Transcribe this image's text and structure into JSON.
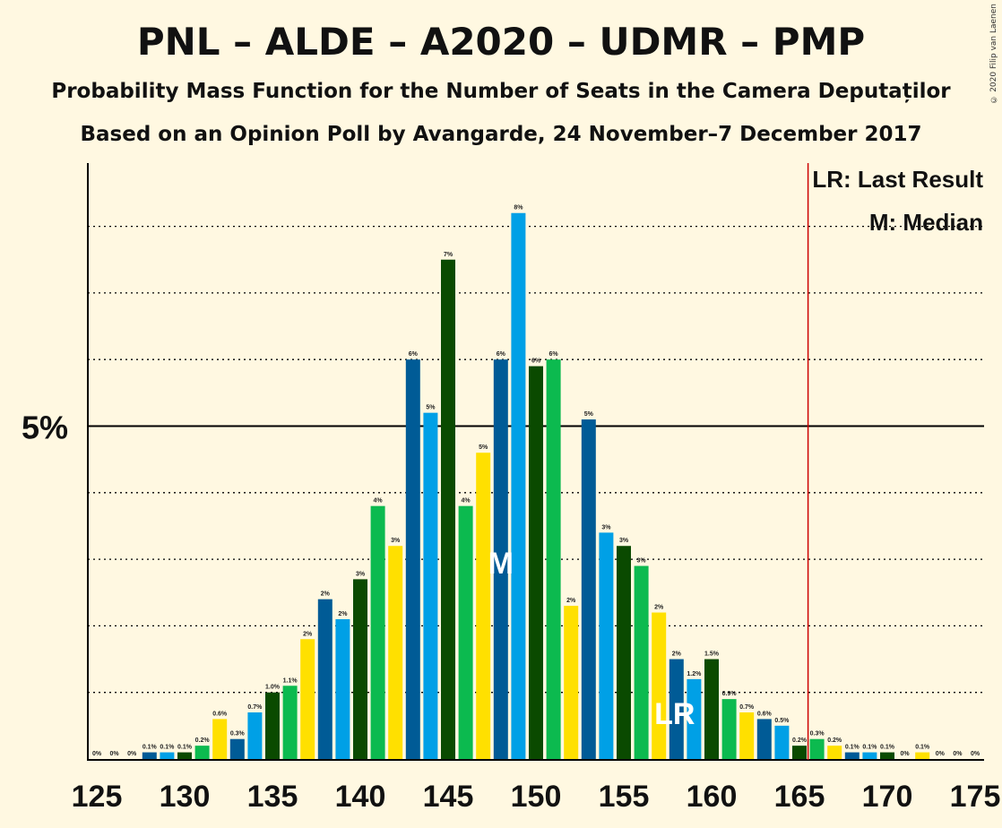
{
  "title": "PNL – ALDE – A2020 – UDMR – PMP",
  "subtitle": "Probability Mass Function for the Number of Seats in the Camera Deputaților",
  "subtitle2": "Based on an Opinion Poll by Avangarde, 24 November–7 December 2017",
  "copyright": "© 2020 Filip van Laenen",
  "legend": {
    "last_result": "LR: Last Result",
    "median": "M: Median"
  },
  "colors": {
    "background": "#fff8e1",
    "palette": [
      "#0a4a00",
      "#0cba4f",
      "#ffe000",
      "#005b96",
      "#00a0e6"
    ],
    "last_result_line": "#cc0000"
  },
  "chart_data": {
    "type": "bar",
    "x": [
      125,
      126,
      127,
      128,
      129,
      130,
      131,
      132,
      133,
      134,
      135,
      136,
      137,
      138,
      139,
      140,
      141,
      142,
      143,
      144,
      145,
      146,
      147,
      148,
      149,
      150,
      151,
      152,
      153,
      154,
      155,
      156,
      157,
      158,
      159,
      160,
      161,
      162,
      163,
      164,
      165,
      166,
      167,
      168,
      169,
      170,
      171,
      172,
      173,
      174,
      175
    ],
    "values": [
      0,
      0,
      0,
      0.1,
      0.1,
      0.1,
      0.2,
      0.6,
      0.3,
      0.7,
      1.0,
      1.1,
      1.8,
      2.4,
      2.1,
      2.7,
      3.8,
      3.2,
      6.0,
      5.2,
      7.5,
      3.8,
      4.6,
      6.0,
      8.2,
      5.9,
      6.0,
      2.3,
      5.1,
      3.4,
      3.2,
      2.9,
      2.2,
      1.5,
      1.2,
      1.5,
      0.9,
      0.7,
      0.6,
      0.5,
      0.2,
      0.3,
      0.2,
      0.1,
      0.1,
      0.1,
      0,
      0.1,
      0,
      0,
      0
    ],
    "labels": [
      "0%",
      "0%",
      "0%",
      "0.1%",
      "0.1%",
      "0.1%",
      "0.2%",
      "0.6%",
      "0.3%",
      "0.7%",
      "1.0%",
      "1.1%",
      "2%",
      "2%",
      "2%",
      "3%",
      "4%",
      "3%",
      "6%",
      "5%",
      "7%",
      "4%",
      "5%",
      "6%",
      "8%",
      "6%",
      "6%",
      "2%",
      "5%",
      "3%",
      "3%",
      "3%",
      "2%",
      "2%",
      "1.2%",
      "1.5%",
      "0.9%",
      "0.7%",
      "0.6%",
      "0.5%",
      "0.2%",
      "0.3%",
      "0.2%",
      "0.1%",
      "0.1%",
      "0.1%",
      "0%",
      "0.1%",
      "0%",
      "0%",
      "0%"
    ],
    "xticks": [
      125,
      130,
      135,
      140,
      145,
      150,
      155,
      160,
      165,
      170,
      175
    ],
    "ytick_label": "5%",
    "ytick_value": 5,
    "ylim": [
      0,
      8.8
    ],
    "gridlines": [
      1,
      2,
      3,
      4,
      5,
      6,
      7,
      8
    ],
    "median": 148,
    "median_label": "M",
    "last_result": 158,
    "last_result_label": "LR",
    "majority_line": 166
  }
}
